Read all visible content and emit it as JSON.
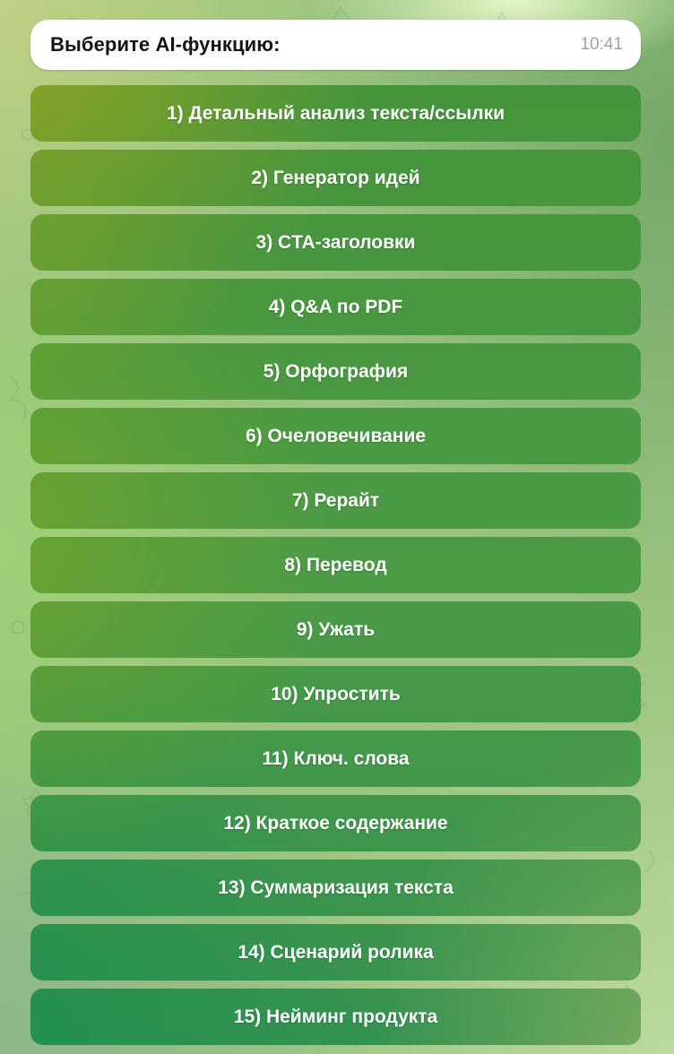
{
  "message": {
    "text": "Выберите AI-функцию:",
    "time": "10:41"
  },
  "keyboard": {
    "buttons": [
      "1) Детальный анализ текста/ссылки",
      "2) Генератор идей",
      "3) CTA-заголовки",
      "4) Q&A по PDF",
      "5) Орфография",
      "6) Очеловечивание",
      "7) Рерайт",
      "8) Перевод",
      "9) Ужать",
      "10) Упростить",
      "11) Ключ. слова",
      "12) Краткое содержание",
      "13) Суммаризация текста",
      "14) Сценарий ролика",
      "15) Нейминг продукта"
    ]
  },
  "colors": {
    "bubble_background": "#ffffff",
    "bubble_text": "#141414",
    "timestamp": "#a3a3a3",
    "button_text": "#ffffff",
    "button_gradient_top_left": "#95a520",
    "button_gradient_top_right": "#44933a",
    "button_gradient_mid_left": "#6ba32f",
    "button_gradient_bottom_left": "#23904f",
    "button_gradient_bottom_right": "#78aa5e",
    "wallpaper_top_left": "#c0d184",
    "wallpaper_top_right": "#74a868",
    "wallpaper_pale_blob": "#e6f7c6",
    "wallpaper_mid_left": "#9ed077",
    "wallpaper_bottom_left": "#8bb78b",
    "wallpaper_bottom_right": "#bcd99e"
  }
}
